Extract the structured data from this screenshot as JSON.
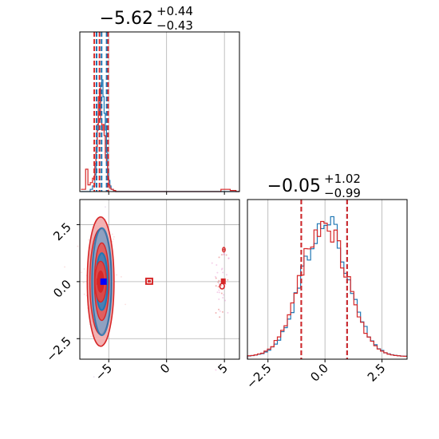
{
  "chart_data": [
    {
      "type": "histogram",
      "panel": "top-left",
      "title": {
        "median": "−5.62",
        "plus": "+0.44",
        "minus": "−0.43"
      },
      "xlim": [
        -7.5,
        6.3
      ],
      "grid": true,
      "series": [
        {
          "name": "",
          "color": "#1f77b4",
          "x": [
            -7.4,
            -7.0,
            -6.8,
            -6.6,
            -6.4,
            -6.2,
            -6.1,
            -6.0,
            -5.9,
            -5.8,
            -5.7,
            -5.6,
            -5.5,
            -5.4,
            -5.3,
            -5.2,
            -5.1,
            -5.0,
            -4.9,
            -4.8,
            -4.6,
            -4.4,
            -4.0,
            -3.0,
            0.0,
            3.0,
            5.0,
            6.0
          ],
          "density": [
            0,
            0,
            0,
            0.02,
            0.05,
            0.15,
            0.35,
            0.55,
            0.7,
            0.8,
            0.95,
            1.0,
            0.85,
            0.7,
            0.55,
            0.35,
            0.2,
            0.1,
            0.05,
            0.02,
            0.01,
            0,
            0,
            0,
            0,
            0,
            0,
            0
          ]
        },
        {
          "name": "",
          "color": "#d62728",
          "x": [
            -7.4,
            -7.0,
            -6.8,
            -6.6,
            -6.4,
            -6.2,
            -6.1,
            -6.0,
            -5.9,
            -5.8,
            -5.7,
            -5.6,
            -5.5,
            -5.4,
            -5.3,
            -5.2,
            -5.1,
            -5.0,
            -4.9,
            -4.8,
            -4.6,
            -4.4,
            -4.0,
            -3.0,
            0.0,
            3.0,
            4.7,
            5.0,
            5.5,
            6.0
          ],
          "density": [
            0.02,
            0.2,
            0.06,
            0.08,
            0.12,
            0.25,
            0.4,
            0.6,
            0.85,
            0.92,
            0.65,
            0.55,
            0.6,
            0.5,
            0.3,
            0.25,
            0.12,
            0.06,
            0.03,
            0.02,
            0.01,
            0,
            0,
            0,
            0,
            0,
            0.02,
            0.02,
            0.01,
            0
          ]
        }
      ],
      "quantiles": {
        "blue": [
          -6.05,
          -5.62,
          -5.18
        ],
        "red": [
          -6.25,
          -5.8,
          -5.05
        ]
      }
    },
    {
      "type": "scatter",
      "panel": "bottom-left",
      "xlim": [
        -7.5,
        6.3
      ],
      "ylim": [
        -3.4,
        3.6
      ],
      "xticks": [
        "−5",
        "0",
        "5"
      ],
      "yticks": [
        "−2.5",
        "0.0",
        "2.5"
      ],
      "grid": true,
      "series": [
        {
          "name": "",
          "color": "#1f77b4",
          "center": [
            -5.6,
            0.0
          ],
          "x_sd": 0.42,
          "y_sd": 1.0
        },
        {
          "name": "",
          "color": "#d62728",
          "clusters": [
            {
              "center": [
                -5.7,
                0.0
              ],
              "x_sd": 0.55,
              "y_sd": 1.05
            },
            {
              "center": [
                -1.5,
                0.0
              ],
              "x_sd": 0.1,
              "y_sd": 0.08
            },
            {
              "center": [
                4.8,
                -0.1
              ],
              "x_sd": 0.2,
              "y_sd": 0.35
            }
          ]
        }
      ]
    },
    {
      "type": "histogram",
      "panel": "bottom-right",
      "title": {
        "median": "−0.05",
        "plus": "+1.02",
        "minus": "−0.99"
      },
      "xlim": [
        -3.4,
        3.6
      ],
      "xticks": [
        "−2.5",
        "0.0",
        "2.5"
      ],
      "grid": true,
      "series": [
        {
          "name": "",
          "color": "#1f77b4",
          "mean": 0.0,
          "sd": 1.0
        },
        {
          "name": "",
          "color": "#d62728",
          "mean": -0.05,
          "sd": 1.0
        }
      ],
      "quantiles": {
        "blue": [
          -1.04,
          0.97
        ],
        "red": [
          -1.04,
          0.97
        ]
      }
    }
  ]
}
